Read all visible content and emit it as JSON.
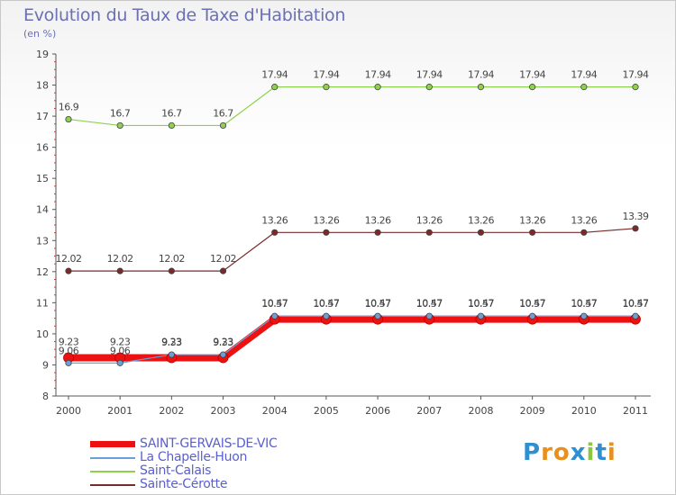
{
  "chart_data": {
    "type": "line",
    "title": "Evolution du Taux de Taxe d'Habitation",
    "subtitle": "(en %)",
    "xlabel": "",
    "ylabel": "",
    "categories": [
      "2000",
      "2001",
      "2002",
      "2003",
      "2004",
      "2005",
      "2006",
      "2007",
      "2008",
      "2009",
      "2010",
      "2011"
    ],
    "ylim": [
      8,
      19
    ],
    "yticks": [
      8,
      9,
      10,
      11,
      12,
      13,
      14,
      15,
      16,
      17,
      18,
      19
    ],
    "series": [
      {
        "name": "Saint-Calais",
        "color": "#8ed14f",
        "values": [
          16.9,
          16.7,
          16.7,
          16.7,
          17.94,
          17.94,
          17.94,
          17.94,
          17.94,
          17.94,
          17.94,
          17.94
        ],
        "labels": [
          "16.9",
          "16.7",
          "16.7",
          "16.7",
          "17.94",
          "17.94",
          "17.94",
          "17.94",
          "17.94",
          "17.94",
          "17.94",
          "17.94"
        ]
      },
      {
        "name": "Sainte-Cérotte",
        "color": "#7a2a2a",
        "values": [
          12.02,
          12.02,
          12.02,
          12.02,
          13.26,
          13.26,
          13.26,
          13.26,
          13.26,
          13.26,
          13.26,
          13.39
        ],
        "labels": [
          "12.02",
          "12.02",
          "12.02",
          "12.02",
          "13.26",
          "13.26",
          "13.26",
          "13.26",
          "13.26",
          "13.26",
          "13.26",
          "13.39"
        ]
      },
      {
        "name": "SAINT-GERVAIS-DE-VIC",
        "color": "#ee1111",
        "values": [
          9.23,
          9.23,
          9.23,
          9.23,
          10.47,
          10.47,
          10.47,
          10.47,
          10.47,
          10.47,
          10.47,
          10.47
        ],
        "labels": [
          "9.23",
          "9.23",
          "9.23",
          "9.23",
          "10.47",
          "10.47",
          "10.47",
          "10.47",
          "10.47",
          "10.47",
          "10.47",
          "10.47"
        ]
      },
      {
        "name": "La Chapelle-Huon",
        "color": "#6aa0d8",
        "values": [
          9.06,
          9.06,
          9.33,
          9.33,
          10.57,
          10.57,
          10.57,
          10.57,
          10.57,
          10.57,
          10.57,
          10.57
        ],
        "labels": [
          "9.06",
          "9.06",
          "9.33",
          "9.33",
          "10.57",
          "10.57",
          "10.57",
          "10.57",
          "10.57",
          "10.57",
          "10.57",
          "10.57"
        ]
      }
    ],
    "legend": [
      "SAINT-GERVAIS-DE-VIC",
      "La Chapelle-Huon",
      "Saint-Calais",
      "Sainte-Cérotte"
    ],
    "legend_position": "bottom-left",
    "grid": false
  },
  "brand": {
    "letters": [
      "P",
      "r",
      "o",
      "x",
      "i",
      "t",
      "i"
    ]
  }
}
